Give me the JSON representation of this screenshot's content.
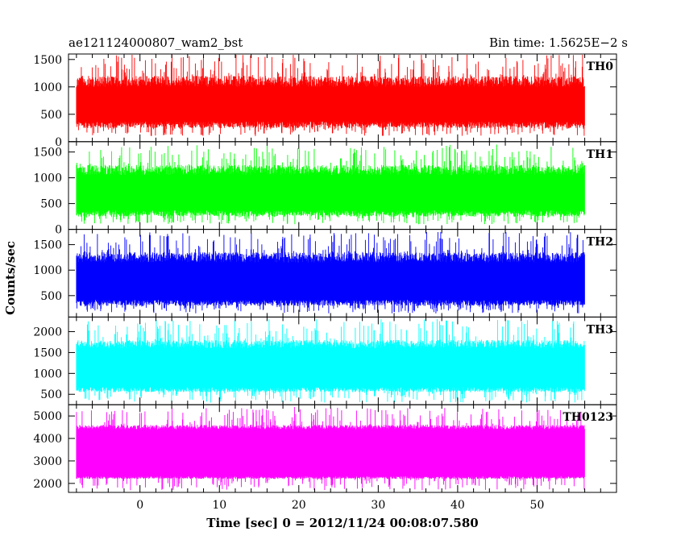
{
  "header": {
    "left_title": "ae121124000807_wam2_bst",
    "right_title": "Bin time: 1.5625E−2 s"
  },
  "axes": {
    "xlabel": "Time [sec] 0 = 2012/11/24 00:08:07.580",
    "ylabel": "Counts/sec"
  },
  "chart_data": {
    "type": "line",
    "title": "ae121124000807_wam2_bst",
    "subtitle": "Bin time: 1.5625E−2 s",
    "xlabel": "Time [sec] 0 = 2012/11/24 00:08:07.580",
    "ylabel": "Counts/sec",
    "xlim": [
      -9,
      60
    ],
    "data_x_range": [
      -8,
      56
    ],
    "bin_time_s": 0.015625,
    "x_ticks": [
      0,
      10,
      20,
      30,
      40,
      50
    ],
    "grid": false,
    "series": [
      {
        "name": "TH0",
        "color": "#ff0000",
        "ylim": [
          0,
          1600
        ],
        "y_ticks": [
          0,
          500,
          1000,
          1500
        ],
        "low": 100,
        "typical_low": 250,
        "typical_high": 1200,
        "high": 1600
      },
      {
        "name": "TH1",
        "color": "#00ff00",
        "ylim": [
          0,
          1700
        ],
        "y_ticks": [
          0,
          500,
          1000,
          1500
        ],
        "low": 100,
        "typical_low": 250,
        "typical_high": 1250,
        "high": 1650
      },
      {
        "name": "TH2",
        "color": "#0000ff",
        "ylim": [
          80,
          1800
        ],
        "y_ticks": [
          500,
          1000,
          1500
        ],
        "low": 150,
        "typical_low": 300,
        "typical_high": 1350,
        "high": 1750
      },
      {
        "name": "TH3",
        "color": "#00ffff",
        "ylim": [
          250,
          2350
        ],
        "y_ticks": [
          500,
          1000,
          1500,
          2000
        ],
        "low": 300,
        "typical_low": 550,
        "typical_high": 1800,
        "high": 2300
      },
      {
        "name": "TH0123",
        "color": "#ff00ff",
        "ylim": [
          1600,
          5500
        ],
        "y_ticks": [
          2000,
          3000,
          4000,
          5000
        ],
        "low": 1700,
        "typical_low": 2200,
        "typical_high": 4600,
        "high": 5400
      }
    ]
  }
}
